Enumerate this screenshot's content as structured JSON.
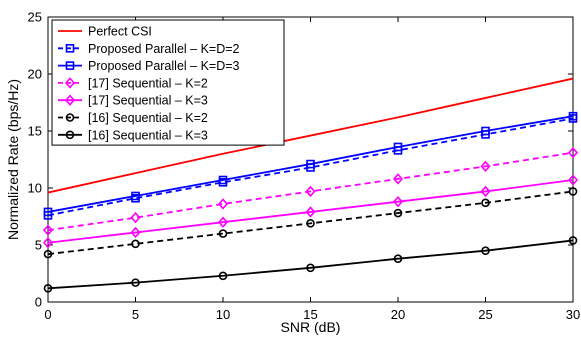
{
  "chart_data": {
    "type": "line",
    "title": "",
    "xlabel": "SNR (dB)",
    "ylabel": "Normalized Rate (bps/Hz)",
    "xlim": [
      0,
      30
    ],
    "ylim": [
      0,
      25
    ],
    "xticks": [
      0,
      5,
      10,
      15,
      20,
      25,
      30
    ],
    "yticks": [
      0,
      5,
      10,
      15,
      20,
      25
    ],
    "grid": false,
    "legend_position": "top-left",
    "x": [
      0,
      5,
      10,
      15,
      20,
      25,
      30
    ],
    "series": [
      {
        "name": "Perfect CSI",
        "color": "#ff0000",
        "dash": "solid",
        "marker": "none",
        "values": [
          9.6,
          11.3,
          13.0,
          14.6,
          16.2,
          17.9,
          19.6
        ]
      },
      {
        "name": "Proposed Parallel – K=D=2",
        "color": "#0000ff",
        "dash": "dashed",
        "marker": "square",
        "values": [
          7.6,
          9.1,
          10.5,
          11.8,
          13.3,
          14.7,
          16.1
        ]
      },
      {
        "name": "Proposed Parallel – K=D=3",
        "color": "#0000ff",
        "dash": "solid",
        "marker": "square",
        "values": [
          7.9,
          9.3,
          10.7,
          12.1,
          13.6,
          15.0,
          16.3
        ]
      },
      {
        "name": "[17] Sequential – K=2",
        "color": "#ff00ff",
        "dash": "dashed",
        "marker": "diamond",
        "values": [
          6.3,
          7.4,
          8.6,
          9.7,
          10.8,
          11.9,
          13.1
        ]
      },
      {
        "name": "[17] Sequential – K=3",
        "color": "#ff00ff",
        "dash": "solid",
        "marker": "diamond",
        "values": [
          5.2,
          6.1,
          7.0,
          7.9,
          8.8,
          9.7,
          10.7
        ]
      },
      {
        "name": "[16] Sequential – K=2",
        "color": "#000000",
        "dash": "dashed",
        "marker": "circle",
        "values": [
          4.2,
          5.1,
          6.0,
          6.9,
          7.8,
          8.7,
          9.7
        ]
      },
      {
        "name": "[16] Sequential – K=3",
        "color": "#000000",
        "dash": "solid",
        "marker": "circle",
        "values": [
          1.2,
          1.7,
          2.3,
          3.0,
          3.8,
          4.5,
          5.4
        ]
      }
    ]
  }
}
